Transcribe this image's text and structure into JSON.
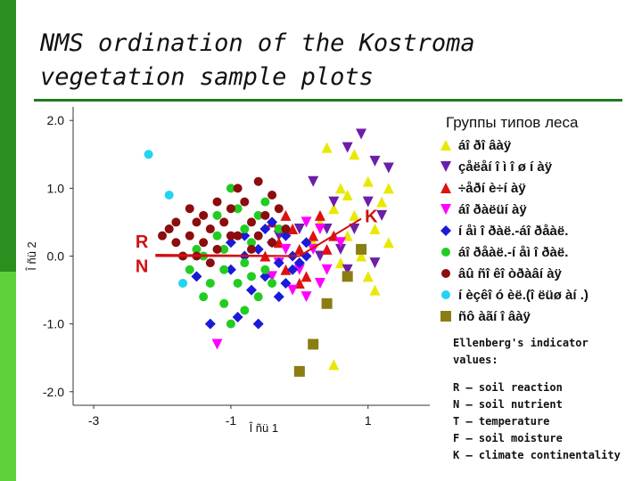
{
  "slide": {
    "title": "NMS ordination of the Kostroma vegetation sample plots"
  },
  "legend": {
    "title": "Группы типов леса",
    "items": [
      {
        "label": "áî ðî âàÿ",
        "marker": "triangle-up",
        "color": "#e8e800"
      },
      {
        "label": "çåëåí î ì î ø í àÿ",
        "marker": "triangle-down",
        "color": "#6b1fa8"
      },
      {
        "label": "÷åðí è÷í àÿ",
        "marker": "triangle-up",
        "color": "#e01010"
      },
      {
        "label": "áî ðàëüí àÿ",
        "marker": "triangle-down",
        "color": "#ff00ff"
      },
      {
        "label": "í åì î ðàë.-áî ðåàë.",
        "marker": "diamond",
        "color": "#1a1ad8"
      },
      {
        "label": "áî ðåàë.-í åì î ðàë.",
        "marker": "circle",
        "color": "#22cc22"
      },
      {
        "label": "âû ñî êî òðàâí àÿ",
        "marker": "circle",
        "color": "#8b0d0d"
      },
      {
        "label": "í èçêî ó èë.(î ëüø àí .)",
        "marker": "circle",
        "color": "#22d4f0"
      },
      {
        "label": "ñô àãí î âàÿ",
        "marker": "square",
        "color": "#8a7d14"
      }
    ]
  },
  "notes": {
    "header": [
      "Ellenberg's indicator",
      "values:"
    ],
    "lines": [
      "R – soil reaction",
      "N – soil nutrient",
      "T – temperature",
      "F – soil moisture",
      "K – climate continentality"
    ]
  },
  "chart_data": {
    "type": "scatter",
    "xlabel": "Î ñü 1",
    "ylabel": "Î ñü 2",
    "xlim": [
      -3.3,
      1.9
    ],
    "ylim": [
      -2.2,
      2.2
    ],
    "xticks": [
      -3,
      -1,
      1
    ],
    "yticks": [
      "2.0",
      "1.0",
      "0.0",
      "-1.0",
      "-2.0"
    ],
    "env_vectors": [
      {
        "label": "R",
        "x": -2.1,
        "y": 0.02,
        "color": "#d01010"
      },
      {
        "label": "N",
        "x": -2.1,
        "y": 0.0,
        "color": "#d01010"
      },
      {
        "label": "K",
        "x": 0.9,
        "y": 0.55,
        "color": "#d01010"
      }
    ],
    "series": [
      {
        "name": "áî ðî âàÿ",
        "marker": "triangle-up",
        "color": "#e8e800",
        "points": [
          [
            0.5,
            0.7
          ],
          [
            0.6,
            1.0
          ],
          [
            0.8,
            0.6
          ],
          [
            0.4,
            1.6
          ],
          [
            0.7,
            0.3
          ],
          [
            1.0,
            1.1
          ],
          [
            1.1,
            0.4
          ],
          [
            1.2,
            0.8
          ],
          [
            0.9,
            0.0
          ],
          [
            1.3,
            0.2
          ],
          [
            0.6,
            -0.1
          ],
          [
            0.3,
            0.5
          ],
          [
            1.0,
            -0.3
          ],
          [
            0.8,
            1.5
          ],
          [
            0.5,
            -1.6
          ],
          [
            1.1,
            -0.5
          ],
          [
            0.2,
            0.2
          ],
          [
            1.3,
            1.0
          ],
          [
            0.7,
            0.9
          ]
        ]
      },
      {
        "name": "çåëåí î ì î ø í àÿ",
        "marker": "triangle-down",
        "color": "#6b1fa8",
        "points": [
          [
            0.9,
            1.8
          ],
          [
            1.1,
            1.4
          ],
          [
            0.7,
            1.6
          ],
          [
            0.2,
            1.1
          ],
          [
            -0.3,
            0.3
          ],
          [
            0.4,
            0.4
          ],
          [
            0.6,
            0.1
          ],
          [
            0.8,
            0.4
          ],
          [
            1.2,
            0.6
          ],
          [
            1.0,
            0.8
          ],
          [
            1.1,
            -0.1
          ],
          [
            0.5,
            0.8
          ],
          [
            0.3,
            0.0
          ],
          [
            1.3,
            1.3
          ],
          [
            0.0,
            0.4
          ],
          [
            0.7,
            -0.2
          ]
        ]
      },
      {
        "name": "÷åðí è÷í àÿ",
        "marker": "triangle-up",
        "color": "#e01010",
        "points": [
          [
            -0.5,
            0.0
          ],
          [
            -0.2,
            -0.2
          ],
          [
            0.0,
            0.1
          ],
          [
            -0.1,
            0.4
          ],
          [
            0.2,
            0.3
          ],
          [
            -0.4,
            0.5
          ],
          [
            0.3,
            0.6
          ],
          [
            0.1,
            -0.3
          ],
          [
            -0.3,
            0.2
          ],
          [
            0.4,
            0.1
          ],
          [
            0.5,
            0.3
          ],
          [
            -0.2,
            0.6
          ],
          [
            0.0,
            -0.4
          ]
        ]
      },
      {
        "name": "áî ðàëüí àÿ",
        "marker": "triangle-down",
        "color": "#ff00ff",
        "points": [
          [
            -1.2,
            -1.3
          ],
          [
            -0.4,
            -0.3
          ],
          [
            -0.2,
            0.1
          ],
          [
            0.0,
            -0.2
          ],
          [
            0.2,
            0.1
          ],
          [
            0.3,
            0.4
          ],
          [
            0.1,
            0.5
          ],
          [
            -0.1,
            -0.5
          ],
          [
            0.4,
            -0.2
          ],
          [
            -0.3,
            -0.1
          ],
          [
            0.6,
            0.2
          ],
          [
            0.3,
            -0.4
          ],
          [
            0.1,
            -0.6
          ]
        ]
      },
      {
        "name": "í åì î ðàë.-áî ðåàë.",
        "marker": "diamond",
        "color": "#1a1ad8",
        "points": [
          [
            -0.6,
            0.1
          ],
          [
            -0.4,
            0.2
          ],
          [
            -0.3,
            -0.1
          ],
          [
            -0.2,
            0.3
          ],
          [
            -0.1,
            0.0
          ],
          [
            0.0,
            -0.1
          ],
          [
            -0.5,
            -0.3
          ],
          [
            -0.7,
            -0.5
          ],
          [
            -0.3,
            -0.6
          ],
          [
            -0.1,
            -0.2
          ],
          [
            0.1,
            0.0
          ],
          [
            -0.4,
            0.5
          ],
          [
            -0.8,
            0.3
          ],
          [
            -1.0,
            -0.2
          ],
          [
            -0.9,
            -0.9
          ],
          [
            -1.3,
            -1.0
          ],
          [
            -0.6,
            -1.0
          ],
          [
            -1.0,
            0.2
          ],
          [
            -0.2,
            -0.4
          ],
          [
            0.1,
            0.2
          ],
          [
            -0.5,
            0.4
          ],
          [
            -1.5,
            -0.3
          ],
          [
            -0.8,
            0.0
          ]
        ]
      },
      {
        "name": "áî ðåàë.-í åì î ðàë.",
        "marker": "circle",
        "color": "#22cc22",
        "points": [
          [
            -1.0,
            1.0
          ],
          [
            -0.8,
            0.4
          ],
          [
            -1.2,
            0.3
          ],
          [
            -1.4,
            0.0
          ],
          [
            -1.1,
            -0.2
          ],
          [
            -0.9,
            -0.4
          ],
          [
            -0.7,
            0.2
          ],
          [
            -0.5,
            -0.2
          ],
          [
            -0.6,
            0.6
          ],
          [
            -1.3,
            -0.4
          ],
          [
            -1.5,
            0.1
          ],
          [
            -1.1,
            -0.7
          ],
          [
            -0.8,
            -0.8
          ],
          [
            -0.4,
            -0.4
          ],
          [
            -0.6,
            -0.6
          ],
          [
            -1.6,
            -0.2
          ],
          [
            -0.9,
            0.7
          ],
          [
            -0.3,
            0.4
          ],
          [
            -1.2,
            0.6
          ],
          [
            -0.7,
            -0.3
          ],
          [
            -1.4,
            -0.6
          ],
          [
            -1.0,
            -1.0
          ],
          [
            -1.7,
            0.0
          ],
          [
            -0.5,
            0.8
          ],
          [
            -1.1,
            0.1
          ],
          [
            -0.8,
            -0.1
          ]
        ]
      },
      {
        "name": "âû ñî êî òðàâí àÿ",
        "marker": "circle",
        "color": "#8b0d0d",
        "points": [
          [
            -1.9,
            0.4
          ],
          [
            -1.8,
            0.2
          ],
          [
            -1.7,
            0.0
          ],
          [
            -1.6,
            0.3
          ],
          [
            -1.5,
            0.5
          ],
          [
            -1.4,
            0.2
          ],
          [
            -1.3,
            0.4
          ],
          [
            -1.2,
            0.1
          ],
          [
            -1.1,
            0.5
          ],
          [
            -1.0,
            0.7
          ],
          [
            -0.9,
            0.3
          ],
          [
            -0.8,
            0.8
          ],
          [
            -0.7,
            0.5
          ],
          [
            -0.6,
            0.3
          ],
          [
            -0.5,
            0.6
          ],
          [
            -0.4,
            0.9
          ],
          [
            -0.3,
            0.7
          ],
          [
            -0.2,
            0.4
          ],
          [
            -1.5,
            0.0
          ],
          [
            -1.2,
            0.8
          ],
          [
            -0.9,
            1.0
          ],
          [
            -0.6,
            1.1
          ],
          [
            -1.8,
            0.5
          ],
          [
            -1.3,
            -0.1
          ],
          [
            -1.0,
            0.3
          ],
          [
            -0.7,
            0.1
          ],
          [
            -1.6,
            0.7
          ],
          [
            -0.4,
            0.2
          ],
          [
            -2.0,
            0.3
          ],
          [
            -1.4,
            0.6
          ]
        ]
      },
      {
        "name": "í èçêî ó èë.(î ëüø àí .)",
        "marker": "circle",
        "color": "#22d4f0",
        "points": [
          [
            -2.2,
            1.5
          ],
          [
            -1.9,
            0.9
          ],
          [
            -1.7,
            -0.4
          ]
        ]
      },
      {
        "name": "ñô àãí î âàÿ",
        "marker": "square",
        "color": "#8a7d14",
        "points": [
          [
            0.4,
            -0.7
          ],
          [
            0.2,
            -1.3
          ],
          [
            0.0,
            -1.7
          ],
          [
            0.7,
            -0.3
          ],
          [
            0.9,
            0.1
          ]
        ]
      }
    ]
  }
}
